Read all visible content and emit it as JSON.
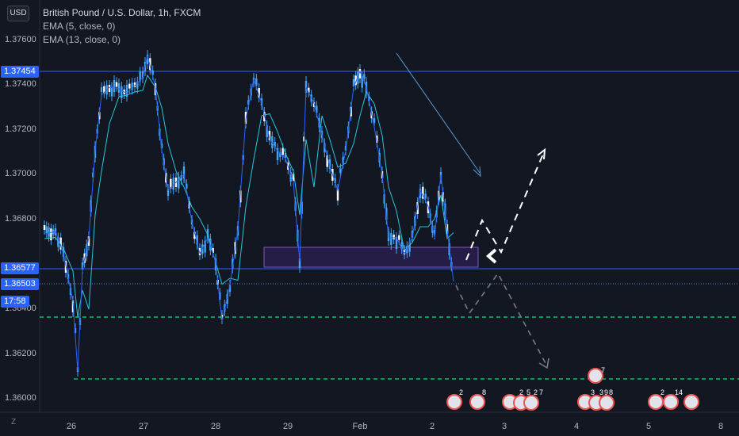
{
  "header": {
    "currency_button": "USD",
    "symbol_title": "British Pound / U.S. Dollar, 1h, FXCM",
    "indicators": [
      "EMA (5, close, 0)",
      "EMA (13, close, 0)"
    ]
  },
  "price_axis": {
    "ticks": [
      "1.37600",
      "1.37400",
      "1.37200",
      "1.37000",
      "1.36800",
      "1.36400",
      "1.36200",
      "1.36000"
    ],
    "tags": {
      "resistance": "1.37454",
      "support": "1.36577",
      "last_price": "1.36503",
      "countdown": "17:58"
    }
  },
  "time_axis": {
    "ticks": [
      "26",
      "27",
      "28",
      "29",
      "Feb",
      "2",
      "3",
      "4",
      "5",
      "8"
    ]
  },
  "footer": {
    "z_button": "Z"
  },
  "events": {
    "badges": [
      "2",
      "8",
      "2",
      "5",
      "2",
      "7",
      "7",
      "3",
      "3",
      "9",
      "8",
      "2",
      "14"
    ]
  },
  "colors": {
    "background": "#131722",
    "candle": "#42a5f5",
    "ema_fast": "#2962ff",
    "ema_slow": "#26c6da",
    "horizontal_line": "#2962ff",
    "green_dashed": "#00e676",
    "zone_fill": "#2a1f4d",
    "zone_border": "#7e57c2",
    "arrow": "#5b9bd5"
  }
}
